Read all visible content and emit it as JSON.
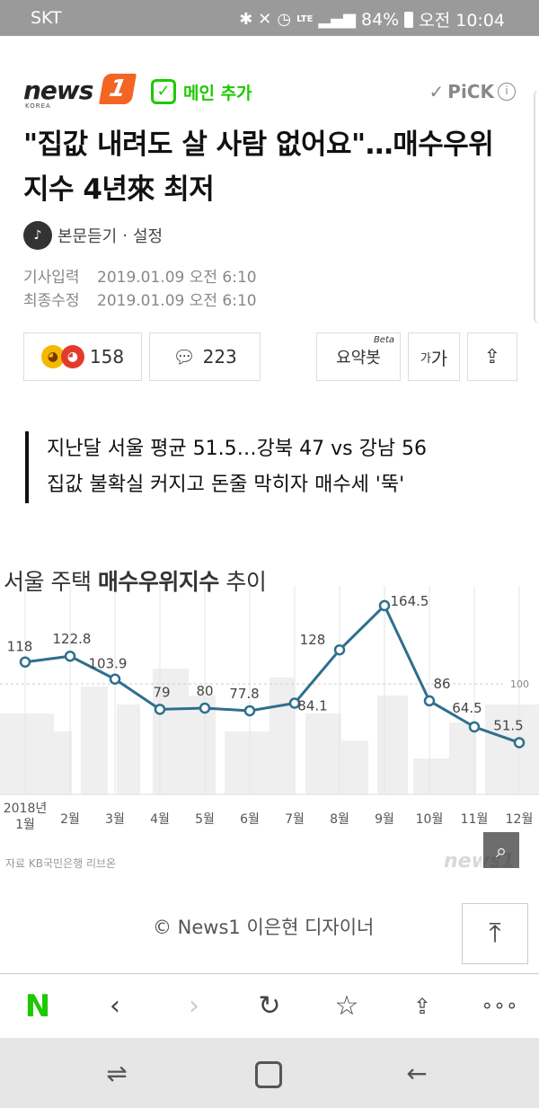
{
  "status_bar": {
    "carrier": "SKT",
    "bluetooth_icon": "bluetooth-icon",
    "mute_icon": "mute-icon",
    "alarm_icon": "alarm-icon",
    "network": "LTE",
    "battery": "84%",
    "time": "오전 10:04"
  },
  "header": {
    "logo_text": "news",
    "logo_number": "1",
    "logo_sub": "KOREA",
    "main_add_label": "메인 추가",
    "pick_label": "PiCK",
    "info_icon": "i"
  },
  "article": {
    "title": "\"집값 내려도 살 사람 없어요\"…매수우위지수 4년來 최저",
    "listen_label": "본문듣기",
    "settings_label": "설정",
    "input_label": "기사입력",
    "input_date": "2019.01.09 오전 6:10",
    "modified_label": "최종수정",
    "modified_date": "2019.01.09 오전 6:10",
    "reactions_count": "158",
    "comments_count": "223",
    "summary_label": "요약봇",
    "beta_label": "Beta",
    "font_small": "가",
    "font_large": "가",
    "subtitle_line1": "지난달 서울 평균 51.5…강북 47 vs 강남 56",
    "subtitle_line2": "집값 불확실 커지고 돈줄 막히자 매수세 '뚝'",
    "credit": "© News1 이은현 디자이너"
  },
  "chart_data": {
    "type": "line",
    "title_prefix": "서울 주택 ",
    "title_bold": "매수우위지수",
    "title_suffix": " 추이",
    "categories": [
      "2018년 1월",
      "2월",
      "3월",
      "4월",
      "5월",
      "6월",
      "7월",
      "8월",
      "9월",
      "10월",
      "11월",
      "12월"
    ],
    "values": [
      118,
      122.8,
      103.9,
      79,
      80,
      77.8,
      84.1,
      128,
      164.5,
      86,
      64.5,
      51.5
    ],
    "value_labels": [
      "118",
      "122.8",
      "103.9",
      "79",
      "80",
      "77.8",
      "84.1",
      "128",
      "164.5",
      "86",
      "64.5",
      "51.5"
    ],
    "reference_line": 100,
    "reference_label": "100",
    "line_color": "#2e6f8e",
    "source": "자료 KB국민은행 리브온",
    "watermark": "news1"
  },
  "browser_bar": {
    "naver_label": "N",
    "back_icon": "chevron-left-icon",
    "forward_icon": "chevron-right-icon",
    "refresh_icon": "refresh-icon",
    "bookmark_icon": "star-icon",
    "share_icon": "share-icon",
    "more_icon": "more-icon"
  },
  "nav_bar": {
    "recent_icon": "recent-apps-icon",
    "home_icon": "home-icon",
    "back_icon": "back-icon"
  }
}
